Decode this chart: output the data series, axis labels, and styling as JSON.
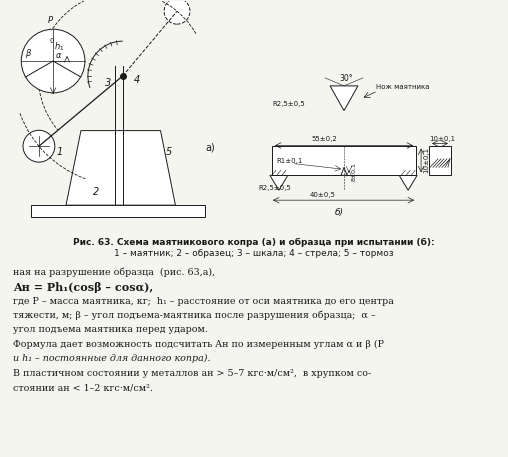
{
  "bg_color": "#f5f5f0",
  "title": "",
  "fig_width": 5.08,
  "fig_height": 4.57,
  "caption_bold": "Рис. 63. Схема маятникового копра (а) и образца при испытании (б):",
  "caption_normal": "1 – маятник; 2 – образец; 3 – шкала; 4 – стрела; 5 – тормоз",
  "text_line1": "ная на разрушение образца  (рис. 63,а),",
  "text_line2": "Aн = Ph₁(cosβ – cosα),",
  "text_line3": "где P – масса маятника, кг;  h₁ – расстояние от оси маятника до его центра",
  "text_line4": "тяжести, м; β – угол подъема‑маятника после разрушения образца;  α –",
  "text_line5": "угол подъема маятника перед ударом.",
  "text_line6": "Формула дает возможность подсчитать Aн по измеренным углам α и β (P",
  "text_line7": "и h₁ – постоянные для данного копра).",
  "text_line8": "В пластичном состоянии у металлов aн > 5–7 кгс·м/см²,  в хрупком со‑",
  "text_line9": "стоянии aн < 1–2 кгс·м/см²."
}
